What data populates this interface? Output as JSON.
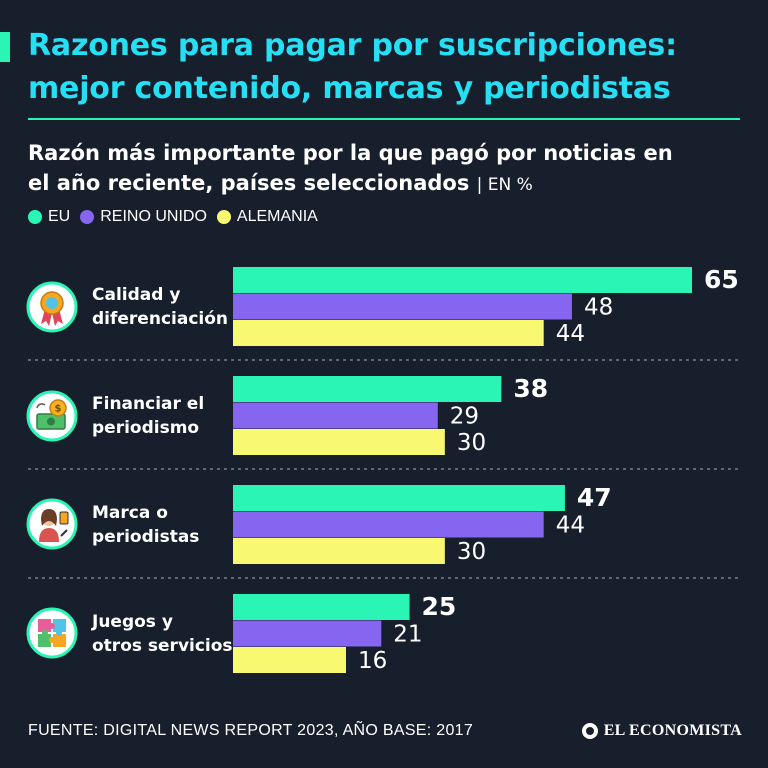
{
  "header": {
    "title_line1": "Razones para pagar por suscripciones:",
    "title_line2": "mejor contenido, marcas y periodistas",
    "subtitle_line1": "Razón más importante por la que pagó por noticias en",
    "subtitle_line2": "el año reciente, países seleccionados",
    "unit": "| EN %"
  },
  "icons": [
    "award-ribbon-icon",
    "money-bill-icon",
    "journalist-icon",
    "puzzle-icon"
  ],
  "colors": {
    "background": "#171e2c",
    "accent": "#2af5b4",
    "title": "#25e0f5",
    "eu": "#2af5b4",
    "uk": "#8666f0",
    "de": "#f9f871"
  },
  "chart_data": {
    "type": "bar",
    "orientation": "horizontal",
    "title": "Razón más importante por la que pagó por noticias en el año reciente, países seleccionados",
    "unit": "%",
    "categories": [
      [
        "Calidad y",
        "diferenciación"
      ],
      [
        "Financiar el",
        "periodismo"
      ],
      [
        "Marca o",
        "periodistas"
      ],
      [
        "Juegos y",
        "otros servicios"
      ]
    ],
    "series": [
      {
        "name": "EU",
        "values": [
          65,
          38,
          47,
          25
        ]
      },
      {
        "name": "REINO UNIDO",
        "values": [
          48,
          29,
          44,
          21
        ]
      },
      {
        "name": "ALEMANIA",
        "values": [
          44,
          30,
          30,
          16
        ]
      }
    ],
    "xlim": [
      0,
      65
    ],
    "legend_position": "top-left",
    "grid": false
  },
  "footer": {
    "source": "FUENTE: DIGITAL NEWS REPORT 2023, AÑO BASE: 2017",
    "brand": "EL ECONOMISTA"
  }
}
